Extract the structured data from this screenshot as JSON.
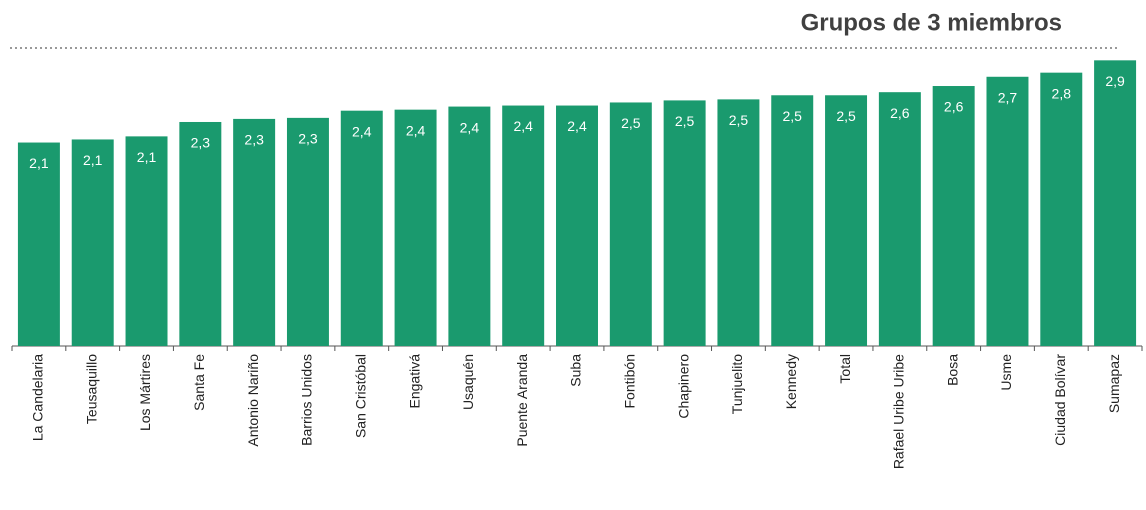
{
  "chart_data": {
    "type": "bar",
    "title": "Grupos de 3 miembros",
    "categories": [
      "La Candelaria",
      "Teusaquillo",
      "Los Mártires",
      "Santa Fe",
      "Antonio Nariño",
      "Barrios Unidos",
      "San Cristóbal",
      "Engativá",
      "Usaquén",
      "Puente Aranda",
      "Suba",
      "Fontibón",
      "Chapinero",
      "Tunjuelito",
      "Kennedy",
      "Total",
      "Rafael Uribe Uribe",
      "Bosa",
      "Usme",
      "Ciudad Bolívar",
      "Sumapaz"
    ],
    "values": [
      2.08,
      2.11,
      2.14,
      2.28,
      2.31,
      2.32,
      2.39,
      2.4,
      2.43,
      2.44,
      2.44,
      2.47,
      2.49,
      2.5,
      2.54,
      2.54,
      2.57,
      2.63,
      2.72,
      2.76,
      2.88
    ],
    "value_labels": [
      "2,1",
      "2,1",
      "2,1",
      "2,3",
      "2,3",
      "2,3",
      "2,4",
      "2,4",
      "2,4",
      "2,4",
      "2,4",
      "2,5",
      "2,5",
      "2,5",
      "2,5",
      "2,5",
      "2,6",
      "2,6",
      "2,7",
      "2,8",
      "2,9"
    ],
    "color": "#1a9a6e",
    "ylim": [
      0.1,
      3.0
    ]
  }
}
